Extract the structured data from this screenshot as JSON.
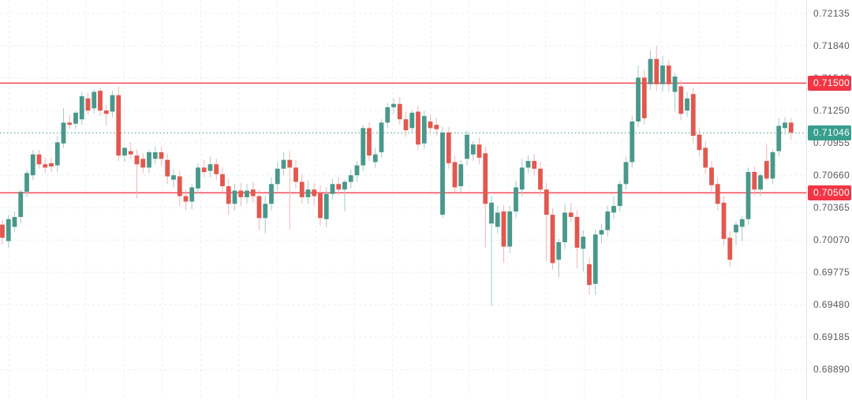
{
  "chart_data": {
    "type": "candlestick",
    "title": "",
    "grid": {
      "visible": true,
      "style": "dashed"
    },
    "legend_position": "none",
    "visible_price_range": {
      "top": 0.72257,
      "bottom": 0.68612
    },
    "colors": {
      "background": "#ffffff",
      "up_body": "#49988b",
      "down_body": "#e2574f",
      "up_wick": "#a9cfc8",
      "down_wick": "#f1bab6",
      "grid": "#eceef3",
      "axis_text": "#56595f",
      "axis_border": "#e0e3e8",
      "level_line": "#f23645",
      "last_price": "#389e8d"
    },
    "price_axis": {
      "side": "right",
      "labels": [
        {
          "text": "0.72135",
          "value": 0.72135
        },
        {
          "text": "0.71840",
          "value": 0.7184
        },
        {
          "text": "0.71545",
          "value": 0.71545
        },
        {
          "text": "0.71250",
          "value": 0.7125
        },
        {
          "text": "0.70955",
          "value": 0.70955
        },
        {
          "text": "0.70660",
          "value": 0.7066
        },
        {
          "text": "0.70365",
          "value": 0.70365
        },
        {
          "text": "0.70070",
          "value": 0.7007
        },
        {
          "text": "0.69775",
          "value": 0.69775
        },
        {
          "text": "0.69480",
          "value": 0.6948
        },
        {
          "text": "0.69185",
          "value": 0.69185
        },
        {
          "text": "0.68890",
          "value": 0.6889
        }
      ]
    },
    "levels": [
      {
        "label": "0.71500",
        "value": 0.715,
        "color": "#f23645",
        "style": "solid"
      },
      {
        "label": "0.70500",
        "value": 0.705,
        "color": "#f23645",
        "style": "solid"
      }
    ],
    "last_price": {
      "label": "0.71046",
      "value": 0.71046,
      "color": "#389e8d",
      "style": "dotted"
    },
    "candles": [
      [
        0.7021,
        0.7025,
        0.7003,
        0.7009
      ],
      [
        0.7006,
        0.703,
        0.7,
        0.7026
      ],
      [
        0.7019,
        0.7033,
        0.7014,
        0.7028
      ],
      [
        0.7028,
        0.7053,
        0.7022,
        0.7051
      ],
      [
        0.7051,
        0.7071,
        0.7046,
        0.7068
      ],
      [
        0.7066,
        0.7089,
        0.7062,
        0.7085
      ],
      [
        0.7085,
        0.7089,
        0.7072,
        0.7076
      ],
      [
        0.7076,
        0.7082,
        0.7068,
        0.7073
      ],
      [
        0.7077,
        0.7082,
        0.7069,
        0.7074
      ],
      [
        0.7075,
        0.7102,
        0.7069,
        0.7096
      ],
      [
        0.7095,
        0.7127,
        0.7091,
        0.7114
      ],
      [
        0.7114,
        0.7121,
        0.7108,
        0.7112
      ],
      [
        0.7113,
        0.7125,
        0.7108,
        0.7123
      ],
      [
        0.7117,
        0.7142,
        0.7112,
        0.7138
      ],
      [
        0.7136,
        0.7141,
        0.7121,
        0.7125
      ],
      [
        0.7127,
        0.7144,
        0.7122,
        0.7142
      ],
      [
        0.7143,
        0.7146,
        0.712,
        0.7125
      ],
      [
        0.7125,
        0.713,
        0.7111,
        0.7122
      ],
      [
        0.7124,
        0.7143,
        0.7119,
        0.7139
      ],
      [
        0.7139,
        0.7147,
        0.7079,
        0.7084
      ],
      [
        0.7084,
        0.7092,
        0.7078,
        0.7091
      ],
      [
        0.7088,
        0.7096,
        0.7081,
        0.7085
      ],
      [
        0.7084,
        0.709,
        0.7045,
        0.7076
      ],
      [
        0.7081,
        0.7086,
        0.7068,
        0.7073
      ],
      [
        0.7073,
        0.7089,
        0.7068,
        0.7087
      ],
      [
        0.7081,
        0.7092,
        0.7076,
        0.7087
      ],
      [
        0.7087,
        0.7092,
        0.7075,
        0.7081
      ],
      [
        0.708,
        0.7086,
        0.7058,
        0.7065
      ],
      [
        0.7062,
        0.7072,
        0.7055,
        0.7066
      ],
      [
        0.7065,
        0.707,
        0.7038,
        0.7047
      ],
      [
        0.7047,
        0.7053,
        0.7034,
        0.7042
      ],
      [
        0.7042,
        0.7058,
        0.7035,
        0.7055
      ],
      [
        0.7054,
        0.7077,
        0.7049,
        0.7073
      ],
      [
        0.7073,
        0.708,
        0.7064,
        0.7069
      ],
      [
        0.707,
        0.7083,
        0.7064,
        0.7076
      ],
      [
        0.7076,
        0.7081,
        0.7062,
        0.7067
      ],
      [
        0.7067,
        0.7073,
        0.705,
        0.7056
      ],
      [
        0.7056,
        0.7063,
        0.703,
        0.704
      ],
      [
        0.704,
        0.7058,
        0.7034,
        0.7052
      ],
      [
        0.7052,
        0.7059,
        0.7038,
        0.7046
      ],
      [
        0.7046,
        0.7058,
        0.704,
        0.7052
      ],
      [
        0.7053,
        0.706,
        0.7041,
        0.7047
      ],
      [
        0.7047,
        0.7053,
        0.7016,
        0.7027
      ],
      [
        0.7027,
        0.7047,
        0.7013,
        0.704
      ],
      [
        0.704,
        0.7064,
        0.7034,
        0.7058
      ],
      [
        0.7058,
        0.7078,
        0.7052,
        0.7072
      ],
      [
        0.7072,
        0.7087,
        0.7066,
        0.708
      ],
      [
        0.708,
        0.7088,
        0.7017,
        0.7073
      ],
      [
        0.7073,
        0.708,
        0.7054,
        0.706
      ],
      [
        0.706,
        0.7067,
        0.704,
        0.7046
      ],
      [
        0.7046,
        0.7061,
        0.704,
        0.7053
      ],
      [
        0.7053,
        0.7059,
        0.7038,
        0.7047
      ],
      [
        0.705,
        0.7057,
        0.702,
        0.7027
      ],
      [
        0.7026,
        0.7055,
        0.7019,
        0.7049
      ],
      [
        0.7049,
        0.7063,
        0.7044,
        0.7058
      ],
      [
        0.7058,
        0.7064,
        0.7048,
        0.7053
      ],
      [
        0.7053,
        0.7062,
        0.7033,
        0.706
      ],
      [
        0.706,
        0.7071,
        0.7054,
        0.7066
      ],
      [
        0.7066,
        0.7079,
        0.706,
        0.7075
      ],
      [
        0.7075,
        0.7112,
        0.707,
        0.7109
      ],
      [
        0.7109,
        0.7114,
        0.7079,
        0.7084
      ],
      [
        0.7078,
        0.7091,
        0.7073,
        0.7085
      ],
      [
        0.7087,
        0.7117,
        0.7082,
        0.7114
      ],
      [
        0.7114,
        0.7132,
        0.7109,
        0.7128
      ],
      [
        0.7128,
        0.7136,
        0.7122,
        0.7131
      ],
      [
        0.7131,
        0.7137,
        0.7112,
        0.7117
      ],
      [
        0.7117,
        0.7124,
        0.7101,
        0.7107
      ],
      [
        0.7109,
        0.7125,
        0.7104,
        0.7123
      ],
      [
        0.7124,
        0.7129,
        0.7089,
        0.7094
      ],
      [
        0.7095,
        0.7125,
        0.709,
        0.712
      ],
      [
        0.7115,
        0.7121,
        0.7104,
        0.7109
      ],
      [
        0.7112,
        0.7118,
        0.7102,
        0.7108
      ],
      [
        0.703,
        0.711,
        0.7027,
        0.7105
      ],
      [
        0.7105,
        0.711,
        0.7072,
        0.7077
      ],
      [
        0.7078,
        0.7084,
        0.705,
        0.7055
      ],
      [
        0.7056,
        0.708,
        0.705,
        0.7076
      ],
      [
        0.7081,
        0.7107,
        0.7075,
        0.7103
      ],
      [
        0.7085,
        0.7097,
        0.7079,
        0.7094
      ],
      [
        0.7094,
        0.71,
        0.7076,
        0.7082
      ],
      [
        0.7086,
        0.7092,
        0.7,
        0.704
      ],
      [
        0.7022,
        0.7047,
        0.6947,
        0.7041
      ],
      [
        0.7019,
        0.7038,
        0.7013,
        0.7032
      ],
      [
        0.7033,
        0.7039,
        0.6986,
        0.7001
      ],
      [
        0.7001,
        0.7038,
        0.6995,
        0.7033
      ],
      [
        0.7033,
        0.7061,
        0.7027,
        0.7055
      ],
      [
        0.7053,
        0.7081,
        0.7047,
        0.7073
      ],
      [
        0.7073,
        0.7084,
        0.7068,
        0.7079
      ],
      [
        0.7079,
        0.7085,
        0.7066,
        0.7072
      ],
      [
        0.7072,
        0.7078,
        0.7047,
        0.7053
      ],
      [
        0.7053,
        0.7059,
        0.6988,
        0.703
      ],
      [
        0.703,
        0.7036,
        0.698,
        0.6986
      ],
      [
        0.6989,
        0.7008,
        0.6973,
        0.7005
      ],
      [
        0.7005,
        0.704,
        0.6999,
        0.7032
      ],
      [
        0.7032,
        0.7041,
        0.7023,
        0.7028
      ],
      [
        0.7028,
        0.7034,
        0.6981,
        0.7
      ],
      [
        0.6999,
        0.7016,
        0.6978,
        0.701
      ],
      [
        0.6985,
        0.6991,
        0.6957,
        0.6966
      ],
      [
        0.6967,
        0.7017,
        0.6957,
        0.7012
      ],
      [
        0.7012,
        0.7022,
        0.7004,
        0.7016
      ],
      [
        0.7016,
        0.7038,
        0.701,
        0.7033
      ],
      [
        0.7032,
        0.7047,
        0.7026,
        0.7038
      ],
      [
        0.7038,
        0.7061,
        0.7033,
        0.7058
      ],
      [
        0.7058,
        0.7083,
        0.7053,
        0.7078
      ],
      [
        0.7078,
        0.712,
        0.7073,
        0.7115
      ],
      [
        0.7115,
        0.7166,
        0.711,
        0.7155
      ],
      [
        0.7155,
        0.7162,
        0.7112,
        0.7118
      ],
      [
        0.7149,
        0.718,
        0.7144,
        0.7172
      ],
      [
        0.7172,
        0.7184,
        0.7143,
        0.7149
      ],
      [
        0.7149,
        0.7175,
        0.7142,
        0.7166
      ],
      [
        0.7166,
        0.7171,
        0.7142,
        0.7149
      ],
      [
        0.7142,
        0.7159,
        0.7124,
        0.7156
      ],
      [
        0.7147,
        0.7153,
        0.7116,
        0.7122
      ],
      [
        0.7125,
        0.7142,
        0.7119,
        0.7136
      ],
      [
        0.714,
        0.7146,
        0.7096,
        0.7102
      ],
      [
        0.7103,
        0.7109,
        0.7083,
        0.7089
      ],
      [
        0.7091,
        0.7097,
        0.7067,
        0.7073
      ],
      [
        0.7073,
        0.7079,
        0.7051,
        0.7057
      ],
      [
        0.7058,
        0.7064,
        0.7034,
        0.704
      ],
      [
        0.7041,
        0.7047,
        0.7002,
        0.7008
      ],
      [
        0.7009,
        0.7015,
        0.6983,
        0.6989
      ],
      [
        0.7014,
        0.7024,
        0.7002,
        0.7021
      ],
      [
        0.7019,
        0.7029,
        0.7006,
        0.7026
      ],
      [
        0.7026,
        0.7073,
        0.7021,
        0.7069
      ],
      [
        0.7069,
        0.7074,
        0.7047,
        0.7053
      ],
      [
        0.7053,
        0.7068,
        0.7047,
        0.7066
      ],
      [
        0.7079,
        0.7094,
        0.7061,
        0.7063
      ],
      [
        0.7063,
        0.709,
        0.7058,
        0.7087
      ],
      [
        0.7088,
        0.7118,
        0.7083,
        0.7111
      ],
      [
        0.7109,
        0.7119,
        0.7103,
        0.7114
      ],
      [
        0.7114,
        0.7118,
        0.7098,
        0.7105
      ]
    ]
  }
}
